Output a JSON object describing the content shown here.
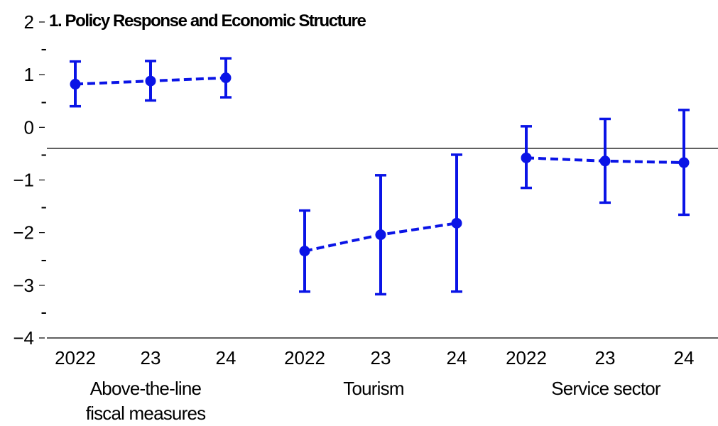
{
  "chart_data": {
    "type": "scatter",
    "title": "1. Policy Response and Economic Structure",
    "xlabel": "",
    "ylabel": "",
    "ylim": [
      -4,
      2
    ],
    "yticks": [
      2,
      1,
      0,
      -1,
      -2,
      -3,
      -4
    ],
    "ytick_labels": [
      "2",
      "1",
      "0",
      "−1",
      "−2",
      "−3",
      "−4"
    ],
    "minor_tick_marker": "-",
    "reference_line_y": -0.4,
    "colors": {
      "series": "#0a14e6",
      "reference_line": "#000000"
    },
    "groups": [
      {
        "label_lines": [
          "Above-the-line",
          "fiscal measures"
        ],
        "x_labels": [
          "2022",
          "23",
          "24"
        ],
        "values": [
          0.82,
          0.88,
          0.94
        ],
        "lower": [
          0.4,
          0.51,
          0.57
        ],
        "upper": [
          1.25,
          1.26,
          1.31
        ]
      },
      {
        "label_lines": [
          "Tourism"
        ],
        "x_labels": [
          "2022",
          "23",
          "24"
        ],
        "values": [
          -2.35,
          -2.04,
          -1.82
        ],
        "lower": [
          -3.12,
          -3.17,
          -3.12
        ],
        "upper": [
          -1.58,
          -0.91,
          -0.52
        ]
      },
      {
        "label_lines": [
          "Service sector"
        ],
        "x_labels": [
          "2022",
          "23",
          "24"
        ],
        "values": [
          -0.58,
          -0.64,
          -0.67
        ],
        "lower": [
          -1.15,
          -1.43,
          -1.66
        ],
        "upper": [
          0.02,
          0.16,
          0.33
        ]
      }
    ]
  }
}
